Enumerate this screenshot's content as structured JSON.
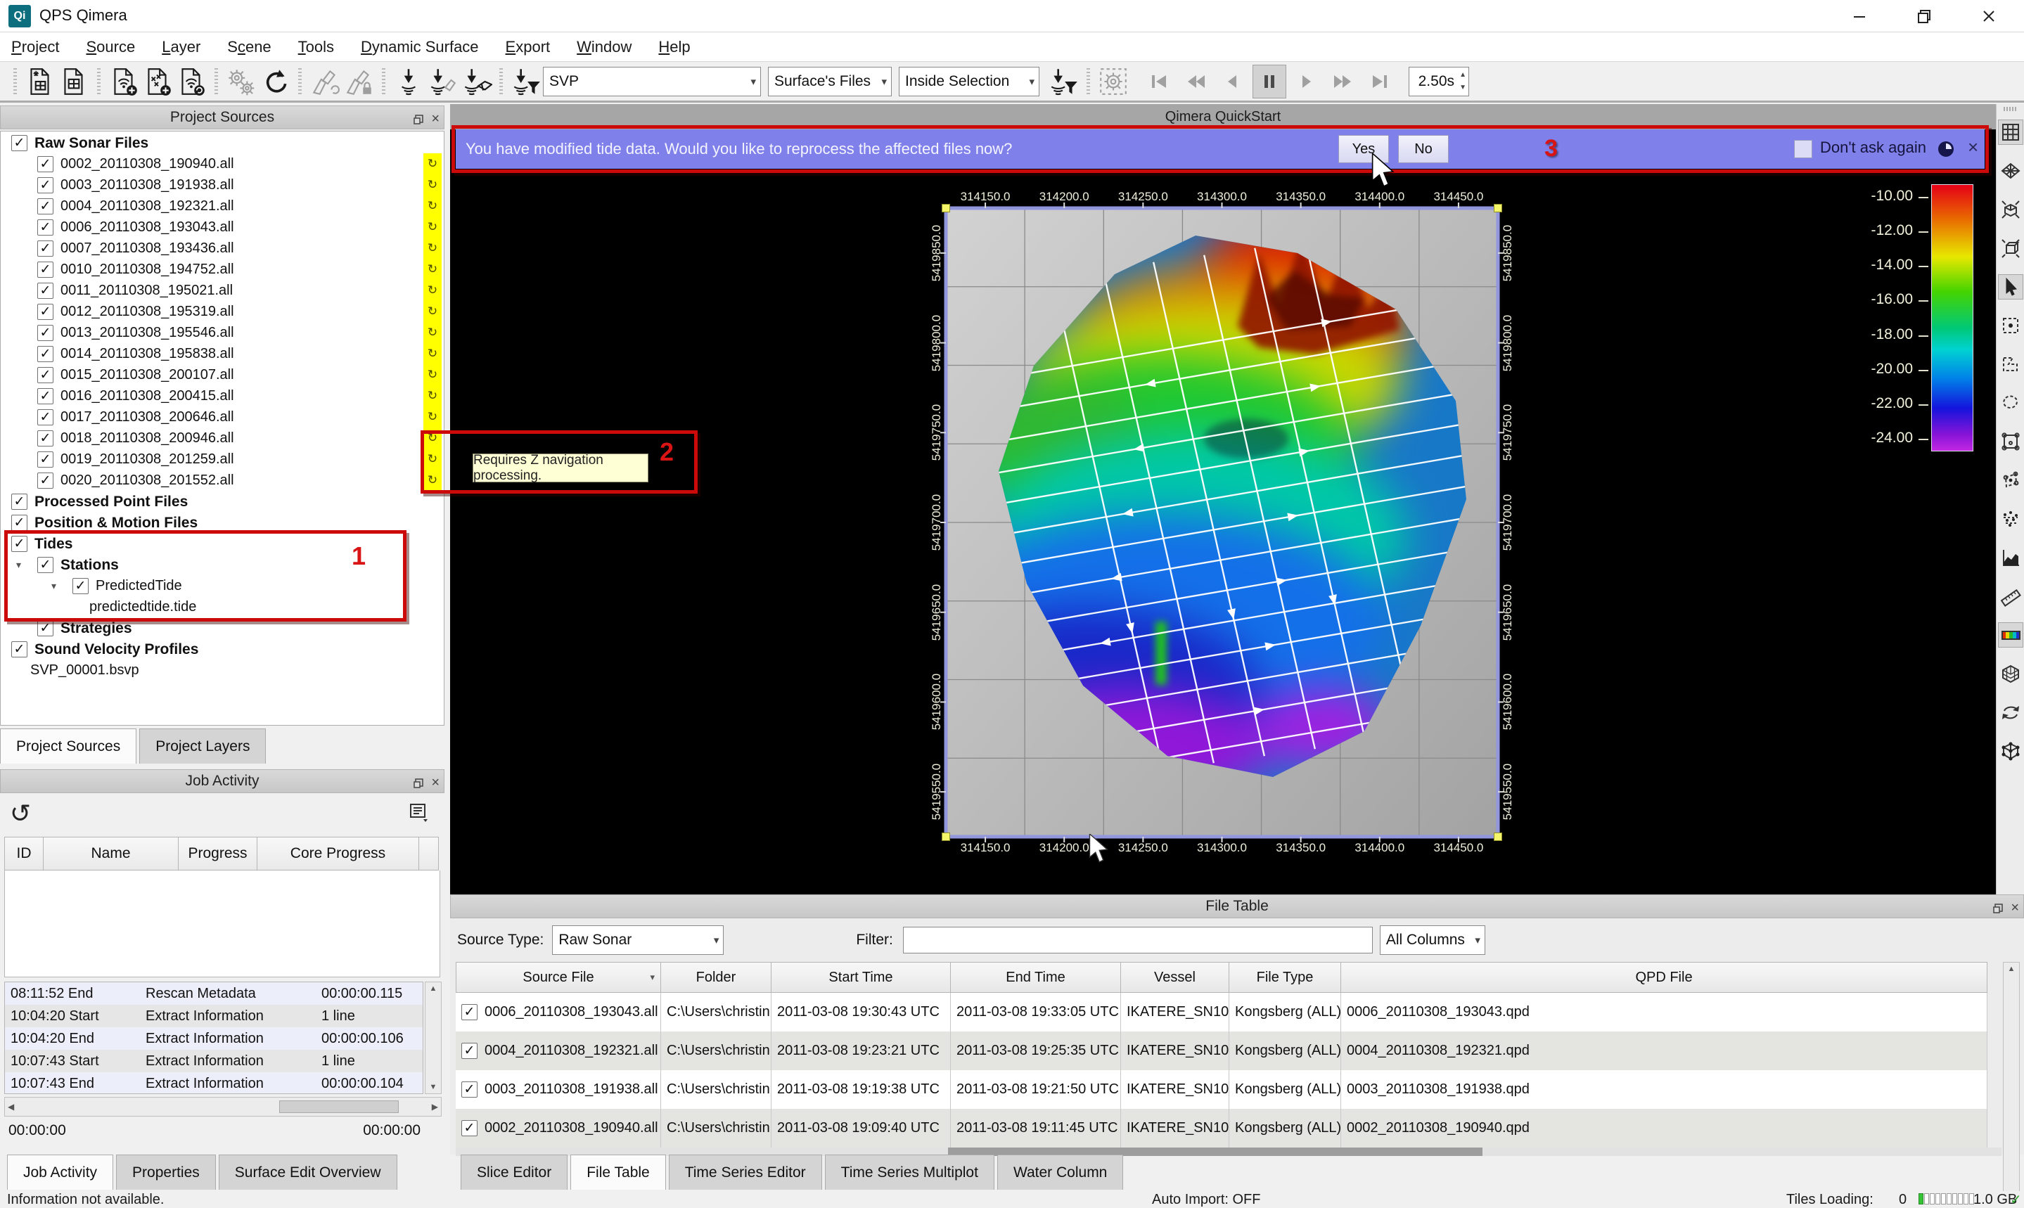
{
  "window": {
    "title": "QPS Qimera",
    "logo_text": "Qi",
    "controls": [
      "minimize",
      "restore",
      "close"
    ]
  },
  "menu": {
    "items": [
      {
        "label": "Project",
        "accel": 0
      },
      {
        "label": "Source",
        "accel": 0
      },
      {
        "label": "Layer",
        "accel": 0
      },
      {
        "label": "Scene",
        "accel": 1
      },
      {
        "label": "Tools",
        "accel": 0
      },
      {
        "label": "Dynamic Surface",
        "accel": 0
      },
      {
        "label": "Export",
        "accel": 0
      },
      {
        "label": "Window",
        "accel": 0
      },
      {
        "label": "Help",
        "accel": 0
      }
    ]
  },
  "toolbar": {
    "groups": [
      {
        "icons": [
          {
            "name": "create-project-icon",
            "style": "doc-spark"
          },
          {
            "name": "open-project-icon",
            "style": "doc-cube"
          }
        ]
      },
      {
        "icons": [
          {
            "name": "add-raw-sonar-icon",
            "style": "doc-sonar-plus"
          },
          {
            "name": "add-point-file-icon",
            "style": "doc-xyz-plus"
          },
          {
            "name": "reload-file-icon",
            "style": "doc-sonar-refresh"
          }
        ]
      },
      {
        "icons": [
          {
            "name": "settings-gears-icon",
            "style": "gears",
            "disabled": true
          },
          {
            "name": "reprocess-icon",
            "style": "refresh"
          }
        ]
      },
      {
        "icons": [
          {
            "name": "update-surface-icon",
            "style": "fan",
            "disabled": true
          },
          {
            "name": "lock-surface-icon",
            "style": "fan-lock",
            "disabled": true
          }
        ]
      },
      {
        "icons": [
          {
            "name": "sonar-plumb-icon",
            "style": "plumb"
          },
          {
            "name": "plumb-fan-icon",
            "style": "plumb-fan"
          },
          {
            "name": "plumb-mesh-icon",
            "style": "plumb-mesh"
          }
        ]
      },
      {
        "icons": [
          {
            "name": "svp-filter-icon",
            "style": "plumb-funnel"
          }
        ]
      }
    ],
    "svp_combo": "SVP",
    "surface_files_combo": "Surface's Files",
    "selection_combo": "Inside Selection",
    "post_combo_icon": "selection-filter-icon",
    "dashed_gear_icon": "auto-processing-icon",
    "playback": [
      "skip-start-button",
      "rewind-button",
      "step-back-button",
      "pause-button",
      "play-button",
      "fast-forward-button",
      "skip-end-button"
    ],
    "speed_value": "2.50s"
  },
  "project_sources": {
    "title": "Project Sources",
    "tabs": [
      {
        "label": "Project Sources",
        "active": true
      },
      {
        "label": "Project Layers",
        "active": false
      }
    ],
    "tree": [
      {
        "label": "Raw Sonar Files",
        "level": 0,
        "check": true,
        "bold": true
      },
      {
        "label": "0002_20110308_190940.all",
        "level": 1,
        "check": true,
        "sync": true
      },
      {
        "label": "0003_20110308_191938.all",
        "level": 1,
        "check": true,
        "sync": true
      },
      {
        "label": "0004_20110308_192321.all",
        "level": 1,
        "check": true,
        "sync": true
      },
      {
        "label": "0006_20110308_193043.all",
        "level": 1,
        "check": true,
        "sync": true
      },
      {
        "label": "0007_20110308_193436.all",
        "level": 1,
        "check": true,
        "sync": true
      },
      {
        "label": "0010_20110308_194752.all",
        "level": 1,
        "check": true,
        "sync": true
      },
      {
        "label": "0011_20110308_195021.all",
        "level": 1,
        "check": true,
        "sync": true
      },
      {
        "label": "0012_20110308_195319.all",
        "level": 1,
        "check": true,
        "sync": true
      },
      {
        "label": "0013_20110308_195546.all",
        "level": 1,
        "check": true,
        "sync": true
      },
      {
        "label": "0014_20110308_195838.all",
        "level": 1,
        "check": true,
        "sync": true
      },
      {
        "label": "0015_20110308_200107.all",
        "level": 1,
        "check": true,
        "sync": true
      },
      {
        "label": "0016_20110308_200415.all",
        "level": 1,
        "check": true,
        "sync": true
      },
      {
        "label": "0017_20110308_200646.all",
        "level": 1,
        "check": true,
        "sync": true
      },
      {
        "label": "0018_20110308_200946.all",
        "level": 1,
        "check": true,
        "sync": true
      },
      {
        "label": "0019_20110308_201259.all",
        "level": 1,
        "check": true,
        "sync": true
      },
      {
        "label": "0020_20110308_201552.all",
        "level": 1,
        "check": true,
        "sync": true
      },
      {
        "label": "Processed Point Files",
        "level": 0,
        "check": true,
        "bold": true
      },
      {
        "label": "Position & Motion Files",
        "level": 0,
        "check": true,
        "bold": true
      },
      {
        "label": "Tides",
        "level": 0,
        "check": true,
        "bold": true
      },
      {
        "label": "Stations",
        "level": 1,
        "check": true,
        "bold": true,
        "expander": true
      },
      {
        "label": "PredictedTide",
        "level": 2,
        "check": true,
        "expander": true
      },
      {
        "label": "predictedtide.tide",
        "level": 3
      },
      {
        "label": "Strategies",
        "level": 1,
        "check": true,
        "bold": true
      },
      {
        "label": "Sound Velocity Profiles",
        "level": 0,
        "check": true,
        "bold": true
      },
      {
        "label": "SVP_00001.bsvp",
        "level": 1
      }
    ],
    "sync_icon": "sync-refresh-icon"
  },
  "job_activity": {
    "title": "Job Activity",
    "undo_icon": "undo-icon",
    "list_icon": "log-options-icon",
    "columns": [
      "ID",
      "Name",
      "Progress",
      "Core Progress"
    ],
    "log": [
      {
        "time": "08:11:52 End",
        "name": "Rescan Metadata",
        "value": "00:00:00.115"
      },
      {
        "time": "10:04:20 Start",
        "name": "Extract Information",
        "value": "1 line"
      },
      {
        "time": "10:04:20 End",
        "name": "Extract Information",
        "value": "00:00:00.106"
      },
      {
        "time": "10:07:43 Start",
        "name": "Extract Information",
        "value": "1 line"
      },
      {
        "time": "10:07:43 End",
        "name": "Extract Information",
        "value": "00:00:00.104"
      }
    ],
    "elapsed_left": "00:00:00",
    "elapsed_right": "00:00:00"
  },
  "viewport": {
    "title": "Qimera QuickStart",
    "notification": {
      "text": "You have modified tide data. Would you like to reprocess the affected files now?",
      "yes_label": "Yes",
      "no_label": "No",
      "dont_ask_label": "Don't ask again",
      "help_icon": "help-clock-icon",
      "close_icon": "close-icon"
    },
    "tooltip": "Requires Z navigation processing.",
    "annotations": {
      "one": "1",
      "two": "2",
      "three": "3"
    }
  },
  "map": {
    "top_labels": [
      "314150.0",
      "314200.0",
      "314250.0",
      "314300.0",
      "314350.0",
      "314400.0",
      "314450.0"
    ],
    "bottom_labels": [
      "314150.0",
      "314200.0",
      "314250.0",
      "314300.0",
      "314350.0",
      "314400.0",
      "314450.0"
    ],
    "left_labels": [
      "5419850.0",
      "5419800.0",
      "5419750.0",
      "5419700.0",
      "5419650.0",
      "5419600.0",
      "5419550.0"
    ],
    "right_labels": [
      "5419850.0",
      "5419800.0",
      "5419750.0",
      "5419700.0",
      "5419650.0",
      "5419600.0",
      "5419550.0"
    ]
  },
  "colorbar": {
    "ticks": [
      "-10.00",
      "-12.00",
      "-14.00",
      "-16.00",
      "-18.00",
      "-20.00",
      "-22.00",
      "-24.00"
    ]
  },
  "right_toolbar": {
    "icons": [
      {
        "name": "grid-view-icon",
        "active": true
      },
      {
        "name": "wireframe-view-icon"
      },
      {
        "name": "zoom-extents-3d-icon"
      },
      {
        "name": "zoom-extents-icon"
      },
      {
        "name": "select-cursor-icon",
        "active": true
      },
      {
        "name": "rect-select-icon"
      },
      {
        "name": "polygon-select-icon"
      },
      {
        "name": "lasso-select-icon"
      },
      {
        "name": "slice-select-icon"
      },
      {
        "name": "node-edit-icon"
      },
      {
        "name": "point-select-icon"
      },
      {
        "name": "profile-chart-icon"
      },
      {
        "name": "measure-ruler-icon"
      },
      {
        "name": "colormap-icon",
        "active": true
      },
      {
        "name": "mesh-view-icon"
      },
      {
        "name": "refresh-view-icon"
      },
      {
        "name": "point-cloud-icon"
      }
    ]
  },
  "file_table": {
    "title": "File Table",
    "source_type_label": "Source Type:",
    "source_type_value": "Raw Sonar",
    "filter_label": "Filter:",
    "filter_value": "",
    "columns_combo": "All Columns",
    "columns": [
      "Source File",
      "Folder",
      "Start Time",
      "End Time",
      "Vessel",
      "File Type",
      "QPD File"
    ],
    "rows": [
      {
        "file": "0006_20110308_193043.all",
        "folder": "C:\\Users\\christin...",
        "start": "2011-03-08 19:30:43 UTC",
        "end": "2011-03-08 19:33:05 UTC",
        "vessel": "IKATERE_SN101",
        "type": "Kongsberg (ALL)",
        "qpd": "0006_20110308_193043.qpd"
      },
      {
        "file": "0004_20110308_192321.all",
        "folder": "C:\\Users\\christin...",
        "start": "2011-03-08 19:23:21 UTC",
        "end": "2011-03-08 19:25:35 UTC",
        "vessel": "IKATERE_SN101",
        "type": "Kongsberg (ALL)",
        "qpd": "0004_20110308_192321.qpd"
      },
      {
        "file": "0003_20110308_191938.all",
        "folder": "C:\\Users\\christin...",
        "start": "2011-03-08 19:19:38 UTC",
        "end": "2011-03-08 19:21:50 UTC",
        "vessel": "IKATERE_SN101",
        "type": "Kongsberg (ALL)",
        "qpd": "0003_20110308_191938.qpd"
      },
      {
        "file": "0002_20110308_190940.all",
        "folder": "C:\\Users\\christin...",
        "start": "2011-03-08 19:09:40 UTC",
        "end": "2011-03-08 19:11:45 UTC",
        "vessel": "IKATERE_SN101",
        "type": "Kongsberg (ALL)",
        "qpd": "0002_20110308_190940.qpd"
      }
    ]
  },
  "bottom_tabs": {
    "left": [
      {
        "label": "Job Activity",
        "active": true
      },
      {
        "label": "Properties",
        "active": false
      },
      {
        "label": "Surface Edit Overview",
        "active": false
      }
    ],
    "right": [
      {
        "label": "Slice Editor",
        "active": false
      },
      {
        "label": "File Table",
        "active": true
      },
      {
        "label": "Time Series Editor",
        "active": false
      },
      {
        "label": "Time Series Multiplot",
        "active": false
      },
      {
        "label": "Water Column",
        "active": false
      }
    ]
  },
  "status_bar": {
    "left_text": "Information not available.",
    "auto_import": "Auto Import: OFF",
    "tiles_label": "Tiles Loading:",
    "tiles_value": "0",
    "memory_value": "1.0 GB",
    "memory_ok_icon": "check-icon"
  }
}
